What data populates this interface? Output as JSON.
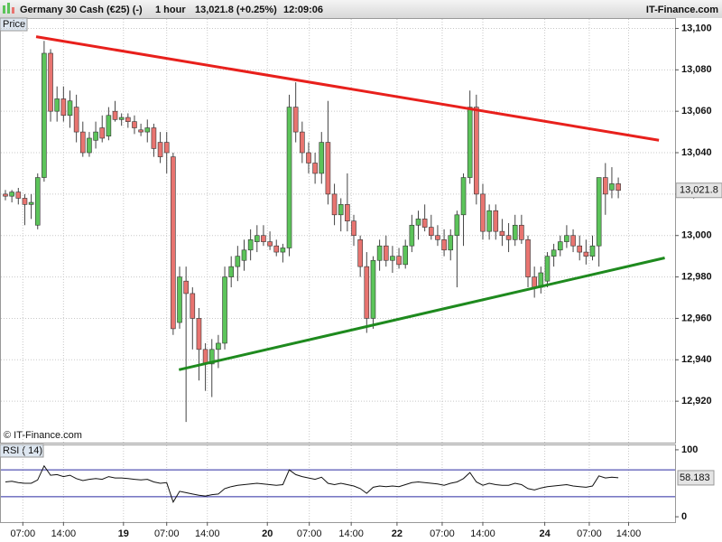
{
  "header": {
    "instrument": "Germany 30 Cash (€25) (-)",
    "interval": "1 hour",
    "price": "13,021.8 (+0.25%)",
    "time": "12:09:06",
    "brand": "IT-Finance.com"
  },
  "chart_data": [
    {
      "type": "candlestick",
      "label": "Price",
      "credit": "© IT-Finance.com",
      "up_color": "#5cc45a",
      "down_color": "#e87470",
      "open": [
        13020,
        13019,
        13021,
        13018,
        13015,
        13005,
        13028,
        13088,
        13060,
        13066,
        13058,
        13062,
        13050,
        13040,
        13046,
        13052,
        13048,
        13060,
        13056,
        13057,
        13055,
        13051,
        13050,
        13052,
        13045,
        13045,
        13038,
        12958,
        12978,
        12972,
        12960,
        12945,
        12938,
        12945,
        12948,
        12980,
        12985,
        12988,
        12993,
        12997,
        13000,
        12997,
        12995,
        12992,
        12994,
        13062,
        13050,
        13040,
        13035,
        13030,
        13045,
        13020,
        13010,
        13015,
        13007,
        12998,
        12985,
        12960,
        12988,
        12995,
        12988,
        12990,
        12986,
        12995,
        13005,
        13008,
        13004,
        13000,
        12998,
        12993,
        13000,
        13010,
        13028,
        13062,
        13020,
        13002,
        13012,
        13002,
        13000,
        12998,
        13005,
        12998,
        12980,
        12975,
        12978,
        12990,
        12993,
        12997,
        13000,
        12995,
        12992,
        12990,
        12995,
        13028,
        13022,
        13025
      ],
      "high": [
        13022,
        13022,
        13023,
        13020,
        13020,
        13030,
        13094,
        13090,
        13072,
        13072,
        13070,
        13068,
        13055,
        13050,
        13055,
        13058,
        13062,
        13065,
        13059,
        13059,
        13058,
        13054,
        13056,
        13054,
        13050,
        13050,
        13040,
        12985,
        12985,
        12975,
        12965,
        12948,
        12950,
        12952,
        12985,
        12990,
        12995,
        12998,
        13003,
        13005,
        13005,
        13002,
        12998,
        12996,
        13068,
        13074,
        13055,
        13045,
        13040,
        13050,
        13065,
        13025,
        13018,
        13030,
        13010,
        13000,
        12992,
        12990,
        12998,
        13000,
        12995,
        12994,
        12998,
        13010,
        13012,
        13015,
        13010,
        13005,
        13003,
        13003,
        13012,
        13030,
        13070,
        13068,
        13025,
        13015,
        13015,
        13008,
        13006,
        13010,
        13010,
        13000,
        12985,
        12985,
        12992,
        12996,
        13000,
        13005,
        13003,
        13000,
        12998,
        13000,
        13028,
        13035,
        13033,
        13028
      ],
      "low": [
        13017,
        13016,
        13015,
        13005,
        13008,
        13003,
        13026,
        13055,
        13055,
        13055,
        13052,
        13045,
        13038,
        13038,
        13042,
        13045,
        13046,
        13055,
        13053,
        13052,
        13049,
        13048,
        13045,
        13038,
        13035,
        13030,
        12952,
        12955,
        12910,
        12945,
        12930,
        12925,
        12922,
        12936,
        12945,
        12975,
        12978,
        12983,
        12988,
        12992,
        12995,
        12993,
        12990,
        12987,
        12990,
        13045,
        13035,
        13030,
        13025,
        13025,
        13015,
        13005,
        13002,
        13002,
        12995,
        12980,
        12953,
        12955,
        12983,
        12985,
        12982,
        12984,
        12984,
        12992,
        12998,
        13002,
        12998,
        12995,
        12990,
        12988,
        12975,
        12995,
        13025,
        13015,
        12998,
        12998,
        12998,
        12995,
        12992,
        12995,
        12996,
        12975,
        12970,
        12972,
        12975,
        12985,
        12990,
        12994,
        12992,
        12988,
        12986,
        12988,
        12985,
        13010,
        13018,
        13018
      ],
      "close": [
        13019,
        13021,
        13018,
        13015,
        13016,
        13028,
        13088,
        13060,
        13066,
        13058,
        13065,
        13050,
        13040,
        13047,
        13050,
        13047,
        13058,
        13056,
        13057,
        13055,
        13052,
        13050,
        13052,
        13042,
        13038,
        13040,
        12955,
        12980,
        12972,
        12960,
        12945,
        12938,
        12945,
        12948,
        12980,
        12985,
        12990,
        12993,
        12998,
        13000,
        12997,
        12995,
        12992,
        12994,
        13062,
        13050,
        13040,
        13035,
        13030,
        13045,
        13020,
        13010,
        13015,
        13007,
        13000,
        12985,
        12960,
        12988,
        12995,
        12988,
        12990,
        12986,
        12995,
        13005,
        13008,
        13004,
        13000,
        12998,
        12993,
        13000,
        13010,
        13028,
        13062,
        13020,
        13002,
        13012,
        13002,
        13000,
        12998,
        13005,
        12998,
        12980,
        12975,
        12982,
        12990,
        12993,
        12997,
        13000,
        12995,
        12992,
        12990,
        12995,
        13028,
        13020,
        13025,
        13021.8
      ],
      "last_price": {
        "value": 13021.8,
        "label": "13,021.8"
      },
      "trendlines": [
        {
          "color": "#e8201c",
          "points": [
            [
              4.76,
              13096
            ],
            [
              101.3,
              13046
            ]
          ]
        },
        {
          "color": "#1e8a1e",
          "points": [
            [
              26.9,
              12935.2
            ],
            [
              102.2,
              12989.2
            ]
          ]
        }
      ],
      "xlim": [
        -0.84,
        103.8
      ],
      "ylim": [
        12900,
        13105
      ],
      "xticks": [
        {
          "value": 2.7,
          "label": "07:00"
        },
        {
          "value": 9,
          "label": "14:00"
        },
        {
          "value": 18.3,
          "label": "19"
        },
        {
          "value": 25,
          "label": "07:00"
        },
        {
          "value": 31.3,
          "label": "14:00"
        },
        {
          "value": 40.6,
          "label": "20"
        },
        {
          "value": 47.1,
          "label": "07:00"
        },
        {
          "value": 53.6,
          "label": "14:00"
        },
        {
          "value": 60.7,
          "label": "22"
        },
        {
          "value": 67.7,
          "label": "07:00"
        },
        {
          "value": 74,
          "label": "14:00"
        },
        {
          "value": 83.6,
          "label": "24"
        },
        {
          "value": 90.5,
          "label": "07:00"
        },
        {
          "value": 96.6,
          "label": "14:00"
        }
      ],
      "yticks": [
        {
          "value": 13100,
          "label": "13,100"
        },
        {
          "value": 13080,
          "label": "13,080"
        },
        {
          "value": 13060,
          "label": "13,060"
        },
        {
          "value": 13040,
          "label": "13,040"
        },
        {
          "value": 13020,
          "label": "13,020"
        },
        {
          "value": 13000,
          "label": "13,000"
        },
        {
          "value": 12980,
          "label": "12,980"
        },
        {
          "value": 12960,
          "label": "12,960"
        },
        {
          "value": 12940,
          "label": "12,940"
        },
        {
          "value": 12920,
          "label": "12,920"
        }
      ],
      "grid": true
    },
    {
      "type": "line",
      "label": "RSI ( 14)",
      "color": "#111111",
      "level_color": "#2a2aa0",
      "values": [
        52,
        53,
        51,
        50,
        50,
        55,
        76,
        62,
        63,
        60,
        62,
        57,
        54,
        56,
        57,
        56,
        60,
        58,
        58,
        57,
        56,
        55,
        56,
        52,
        50,
        51,
        22,
        38,
        36,
        34,
        32,
        31,
        33,
        34,
        42,
        45,
        47,
        48,
        49,
        50,
        49,
        48,
        47,
        48,
        70,
        63,
        60,
        58,
        56,
        59,
        50,
        48,
        50,
        48,
        46,
        42,
        35,
        44,
        46,
        45,
        46,
        45,
        48,
        51,
        52,
        51,
        50,
        49,
        47,
        50,
        52,
        57,
        66,
        52,
        47,
        50,
        48,
        47,
        47,
        50,
        48,
        42,
        40,
        43,
        45,
        46,
        47,
        48,
        46,
        45,
        44,
        46,
        61,
        58,
        59,
        58.183
      ],
      "levels": [
        70,
        30
      ],
      "ylim": [
        -8,
        108
      ],
      "yticks": [
        100,
        0
      ]
    }
  ]
}
